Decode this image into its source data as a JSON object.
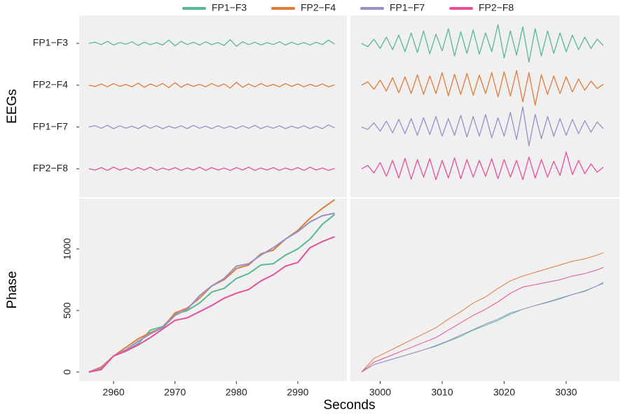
{
  "chart_data": [
    {
      "type": "line",
      "legend": "top",
      "ylabel": "EEGs",
      "x": [
        2956,
        2957,
        2958,
        2959,
        2960,
        2961,
        2962,
        2963,
        2964,
        2965,
        2966,
        2967,
        2968,
        2969,
        2970,
        2971,
        2972,
        2973,
        2974,
        2975,
        2976,
        2977,
        2978,
        2979,
        2980,
        2981,
        2982,
        2983,
        2984,
        2985,
        2986,
        2987,
        2988,
        2989,
        2990,
        2991,
        2992,
        2993,
        2994,
        2995,
        2996
      ],
      "xlim": [
        2954.4,
        2998
      ],
      "ylim": [
        0.32,
        4.67
      ],
      "yticks": [
        {
          "value": 4,
          "label": "FP1−F3"
        },
        {
          "value": 3,
          "label": "FP2−F4"
        },
        {
          "value": 2,
          "label": "FP1−F7"
        },
        {
          "value": 1,
          "label": "FP2−F8"
        }
      ],
      "series": [
        {
          "name": "FP1−F3",
          "color": "#58b897",
          "values": [
            4,
            4.03,
            3.97,
            4.05,
            3.96,
            4.02,
            3.98,
            4.04,
            3.95,
            4.03,
            3.97,
            4.02,
            3.96,
            4.08,
            3.94,
            4.05,
            3.97,
            4.03,
            3.96,
            4.04,
            3.97,
            4.02,
            3.95,
            4.09,
            3.93,
            4.04,
            3.97,
            4.03,
            3.96,
            4.02,
            3.97,
            4.04,
            3.96,
            4.03,
            3.97,
            4.02,
            3.96,
            4.03,
            3.97,
            4.08,
            3.98
          ]
        },
        {
          "name": "FP2−F4",
          "color": "#e07b39",
          "values": [
            3,
            2.97,
            3.03,
            2.96,
            3.04,
            2.97,
            3.02,
            2.96,
            3.05,
            2.95,
            3.03,
            2.97,
            3.04,
            2.94,
            3.06,
            2.95,
            3.03,
            2.97,
            3.02,
            2.96,
            3.04,
            2.97,
            3.03,
            2.93,
            3.07,
            2.95,
            3.03,
            2.96,
            3.04,
            2.97,
            3.02,
            2.96,
            3.04,
            2.97,
            3.03,
            2.96,
            3.02,
            2.97,
            3.03,
            2.96,
            3.01
          ]
        },
        {
          "name": "FP1−F7",
          "color": "#9690c8",
          "values": [
            2,
            2.03,
            1.97,
            2.04,
            1.96,
            2.03,
            1.97,
            2.02,
            1.96,
            2.04,
            1.97,
            2.03,
            1.96,
            2.02,
            1.97,
            2.03,
            1.96,
            2.04,
            1.97,
            2.02,
            1.96,
            2.03,
            1.97,
            2.02,
            1.96,
            2.03,
            1.97,
            2.04,
            1.96,
            2.02,
            1.97,
            2.03,
            1.96,
            2.02,
            1.97,
            2.03,
            1.96,
            2.02,
            1.96,
            2.05,
            1.98
          ]
        },
        {
          "name": "FP2−F8",
          "color": "#e84f9b",
          "values": [
            1,
            0.97,
            1.03,
            0.96,
            1.04,
            0.97,
            1.02,
            0.96,
            1.03,
            0.97,
            1.04,
            0.96,
            1.02,
            0.97,
            1.03,
            0.96,
            1.02,
            0.97,
            1.04,
            0.96,
            1.03,
            0.97,
            1.02,
            0.96,
            1.03,
            0.97,
            1.04,
            0.96,
            1.02,
            0.97,
            1.03,
            0.96,
            1.02,
            0.97,
            1.03,
            0.96,
            1.04,
            0.97,
            1.02,
            0.96,
            1.01
          ]
        }
      ]
    },
    {
      "type": "line",
      "x": [
        2997,
        2998,
        2999,
        3000,
        3001,
        3002,
        3003,
        3004,
        3005,
        3006,
        3007,
        3008,
        3009,
        3010,
        3011,
        3012,
        3013,
        3014,
        3015,
        3016,
        3017,
        3018,
        3019,
        3020,
        3021,
        3022,
        3023,
        3024,
        3025,
        3026,
        3027,
        3028,
        3029,
        3030,
        3031,
        3032,
        3033,
        3034,
        3035,
        3036
      ],
      "xlim": [
        2995.2,
        3038.6
      ],
      "ylim": [
        0.32,
        4.67
      ],
      "series": [
        {
          "color": "#58b897",
          "values": [
            4,
            3.92,
            4.1,
            3.88,
            4.15,
            3.85,
            4.2,
            3.8,
            4.25,
            3.78,
            4.3,
            3.75,
            4.22,
            3.82,
            4.35,
            3.7,
            4.28,
            3.76,
            4.32,
            3.74,
            4.25,
            3.8,
            4.45,
            3.65,
            4.3,
            3.72,
            4.4,
            3.55,
            4.35,
            3.7,
            4.3,
            3.76,
            4.25,
            3.8,
            4.2,
            3.85,
            4.15,
            3.88,
            4.1,
            3.95
          ]
        },
        {
          "color": "#e07b39",
          "values": [
            3,
            3.08,
            2.9,
            3.12,
            2.86,
            3.18,
            2.82,
            3.2,
            2.8,
            3.25,
            2.78,
            3.22,
            2.8,
            3.3,
            2.75,
            3.26,
            2.78,
            3.28,
            2.76,
            3.24,
            2.8,
            3.3,
            2.72,
            3.32,
            2.74,
            3.35,
            2.6,
            3.3,
            2.52,
            3.25,
            2.78,
            3.22,
            2.8,
            3.2,
            2.84,
            3.15,
            2.88,
            3.1,
            2.92,
            3.02
          ]
        },
        {
          "color": "#9690c8",
          "values": [
            2,
            1.94,
            2.1,
            1.9,
            2.14,
            1.86,
            2.18,
            1.84,
            2.2,
            1.8,
            2.22,
            1.82,
            2.25,
            1.78,
            2.2,
            1.8,
            2.28,
            1.76,
            2.25,
            1.78,
            2.3,
            1.74,
            2.22,
            1.78,
            2.35,
            1.7,
            2.48,
            1.55,
            2.3,
            1.72,
            2.25,
            1.78,
            2.2,
            1.8,
            2.18,
            1.84,
            2.15,
            1.88,
            2.12,
            1.96
          ]
        },
        {
          "color": "#e84f9b",
          "values": [
            1,
            1.08,
            0.9,
            1.15,
            0.82,
            1.2,
            0.78,
            1.25,
            0.75,
            1.22,
            0.8,
            1.24,
            0.74,
            1.2,
            0.78,
            1.26,
            0.76,
            1.22,
            0.8,
            1.2,
            0.82,
            1.24,
            0.76,
            1.22,
            0.8,
            1.2,
            0.74,
            1.28,
            0.78,
            1.22,
            0.8,
            1.18,
            0.84,
            1.4,
            0.86,
            1.2,
            0.88,
            1.12,
            0.92,
            1.04
          ]
        }
      ]
    },
    {
      "type": "line",
      "ylabel": "Phase",
      "xlabel": "Seconds",
      "x": [
        2956,
        2958,
        2960,
        2962,
        2964,
        2966,
        2968,
        2970,
        2972,
        2974,
        2976,
        2978,
        2980,
        2982,
        2984,
        2986,
        2988,
        2990,
        2992,
        2994,
        2996
      ],
      "xlim": [
        2954.4,
        2998
      ],
      "ylim": [
        -74,
        1409
      ],
      "xticks": [
        2960,
        2970,
        2980,
        2990
      ],
      "yticks": [
        0,
        500,
        1000
      ],
      "series": [
        {
          "color": "#58b897",
          "values": [
            0,
            30,
            130,
            170,
            230,
            340,
            370,
            470,
            500,
            560,
            650,
            680,
            760,
            800,
            870,
            880,
            950,
            1000,
            1080,
            1200,
            1280
          ]
        },
        {
          "color": "#e07b39",
          "values": [
            0,
            40,
            130,
            200,
            270,
            320,
            360,
            480,
            520,
            600,
            700,
            750,
            840,
            870,
            960,
            990,
            1080,
            1150,
            1250,
            1330,
            1400
          ]
        },
        {
          "color": "#9690c8",
          "values": [
            0,
            30,
            130,
            180,
            250,
            310,
            360,
            460,
            510,
            620,
            700,
            760,
            860,
            880,
            950,
            1010,
            1080,
            1140,
            1220,
            1270,
            1290
          ]
        },
        {
          "color": "#e84f9b",
          "values": [
            0,
            20,
            130,
            170,
            220,
            280,
            350,
            420,
            440,
            490,
            540,
            600,
            640,
            670,
            740,
            790,
            860,
            890,
            1010,
            1060,
            1100
          ]
        }
      ]
    },
    {
      "type": "line",
      "x": [
        2997,
        2999,
        3001,
        3003,
        3005,
        3007,
        3009,
        3011,
        3013,
        3015,
        3017,
        3019,
        3021,
        3023,
        3025,
        3027,
        3029,
        3031,
        3033,
        3035,
        3036
      ],
      "xlim": [
        2995.2,
        3038.6
      ],
      "ylim": [
        -74,
        1409
      ],
      "xticks": [
        3000,
        3010,
        3020,
        3030
      ],
      "series": [
        {
          "color": "#58b897",
          "values": [
            0,
            60,
            90,
            120,
            150,
            180,
            210,
            250,
            290,
            340,
            380,
            420,
            470,
            510,
            540,
            570,
            600,
            630,
            660,
            700,
            720
          ]
        },
        {
          "color": "#e07b39",
          "values": [
            0,
            110,
            160,
            210,
            260,
            310,
            360,
            430,
            490,
            560,
            610,
            680,
            740,
            780,
            810,
            840,
            870,
            900,
            920,
            950,
            970
          ]
        },
        {
          "color": "#9690c8",
          "values": [
            0,
            60,
            90,
            120,
            150,
            180,
            215,
            255,
            300,
            345,
            390,
            430,
            480,
            510,
            540,
            565,
            595,
            630,
            655,
            700,
            730
          ]
        },
        {
          "color": "#e84f9b",
          "values": [
            0,
            80,
            120,
            160,
            200,
            240,
            280,
            340,
            400,
            460,
            510,
            570,
            640,
            690,
            710,
            730,
            750,
            780,
            800,
            830,
            850
          ]
        }
      ]
    }
  ]
}
